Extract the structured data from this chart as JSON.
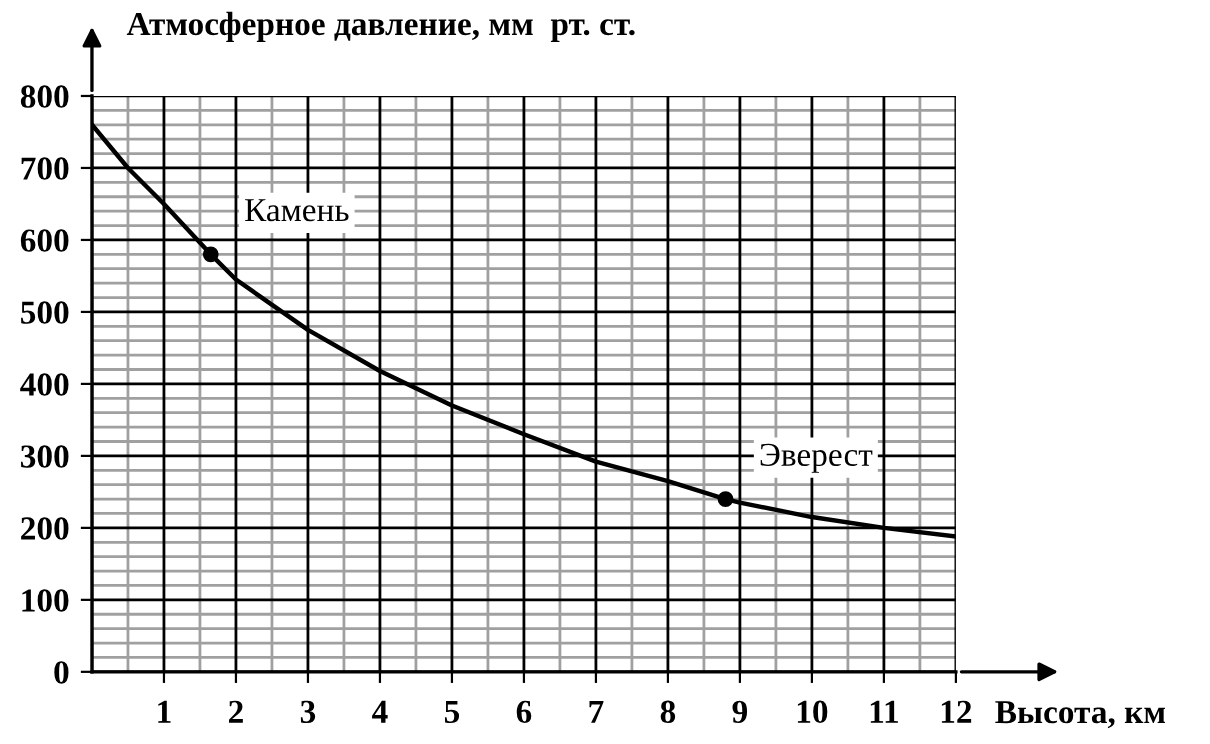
{
  "chart_data": {
    "type": "line",
    "ylabel": "Атмосферное давление, мм  рт. ст.",
    "xlabel": "Высота, км",
    "xlim": [
      0,
      12
    ],
    "ylim": [
      0,
      800
    ],
    "xticks": [
      1,
      2,
      3,
      4,
      5,
      6,
      7,
      8,
      9,
      10,
      11,
      12
    ],
    "yticks": [
      0,
      100,
      200,
      300,
      400,
      500,
      600,
      700,
      800
    ],
    "grid": true,
    "marker": "none",
    "line_style": "solid",
    "series": [
      {
        "color": "#000000",
        "x": [
          0,
          0.5,
          1,
          1.65,
          2,
          3,
          4,
          5,
          6,
          7,
          8,
          8.8,
          9,
          10,
          11,
          12
        ],
        "values": [
          760,
          700,
          650,
          580,
          545,
          475,
          418,
          370,
          330,
          292,
          265,
          240,
          235,
          215,
          200,
          188
        ]
      },
      {
        "type": "scatter",
        "color": "#000000",
        "marker": "circle",
        "x": [
          1.65,
          8.8
        ],
        "values": [
          580,
          240
        ]
      }
    ],
    "annotations": [
      {
        "text": "Камень",
        "x": 1.65,
        "y": 580
      },
      {
        "text": "Эверест",
        "x": 8.8,
        "y": 240
      }
    ]
  }
}
